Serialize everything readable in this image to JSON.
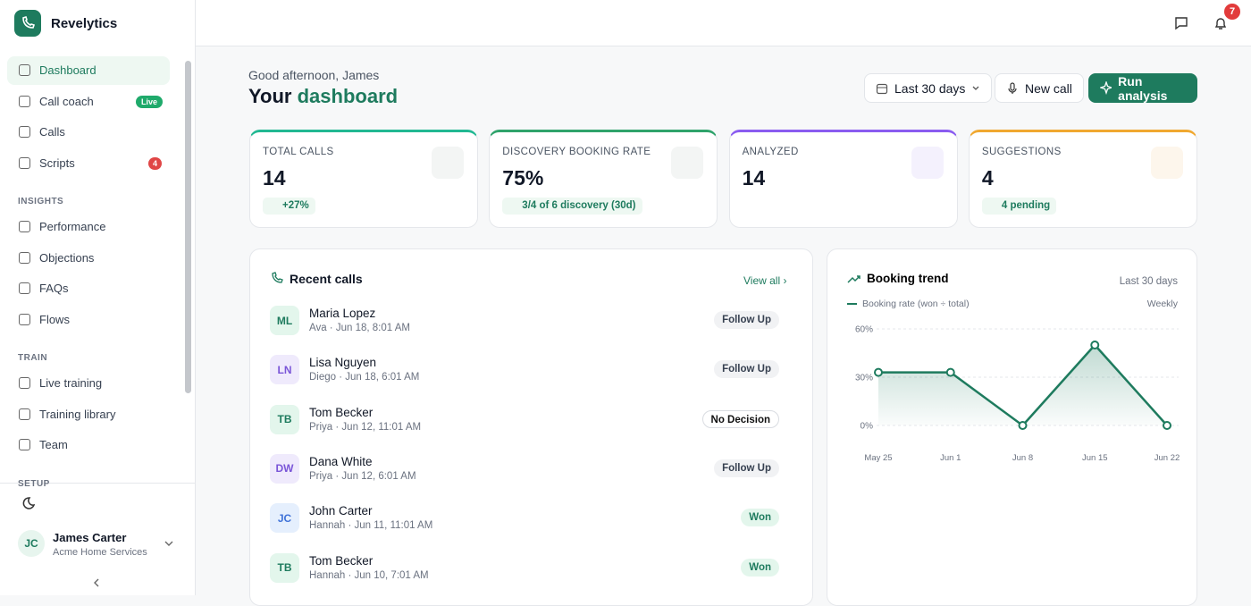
{
  "sidebar": {
    "brand": "Revelytics",
    "nav": [
      {
        "label": "Dashboard"
      },
      {
        "label": "Call coach",
        "badge": "Live"
      },
      {
        "label": "Calls"
      },
      {
        "label": "Scripts",
        "badge": "4"
      }
    ],
    "sections": [
      {
        "title": "INSIGHTS",
        "items": [
          "Performance",
          "Objections",
          "FAQs",
          "Flows"
        ]
      },
      {
        "title": "TRAIN",
        "items": [
          "Live training",
          "Training library",
          "Team"
        ]
      },
      {
        "title": "SETUP"
      }
    ],
    "user": {
      "initials": "JC",
      "name": "James Carter",
      "org": "Acme Home Services"
    }
  },
  "topbar": {
    "notifications": "7"
  },
  "header": {
    "greeting": "Good afternoon, James",
    "title_prefix": "Your",
    "title_highlight": "dashboard",
    "buttons": [
      "Last 30 days",
      "New call",
      "Run analysis"
    ]
  },
  "stats": [
    {
      "label": "TOTAL CALLS",
      "value": "14",
      "note": "+27%"
    },
    {
      "label": "DISCOVERY BOOKING RATE",
      "value": "75%",
      "note": "3/4 of 6 discovery (30d)"
    },
    {
      "label": "ANALYZED",
      "value": "14"
    },
    {
      "label": "SUGGESTIONS",
      "value": "4",
      "note": "4 pending"
    }
  ],
  "recent_calls": {
    "title": "Recent calls",
    "link": "View all",
    "rows": [
      {
        "initials": "ML",
        "name": "Maria Lopez",
        "meta": "Ava · Jun 18, 8:01 AM",
        "status": "Follow Up"
      },
      {
        "initials": "LN",
        "name": "Lisa Nguyen",
        "meta": "Diego · Jun 18, 6:01 AM",
        "status": "Follow Up"
      },
      {
        "initials": "TB",
        "name": "Tom Becker",
        "meta": "Priya · Jun 12, 11:01 AM",
        "status": "No Decision"
      },
      {
        "initials": "DW",
        "name": "Dana White",
        "meta": "Priya · Jun 12, 6:01 AM",
        "status": "Follow Up"
      },
      {
        "initials": "JC",
        "name": "John Carter",
        "meta": "Hannah · Jun 11, 11:01 AM",
        "status": "Won"
      },
      {
        "initials": "TB",
        "name": "Tom Becker",
        "meta": "Hannah · Jun 10, 7:01 AM",
        "status": "Won"
      }
    ]
  },
  "chart_data": {
    "type": "line",
    "title": "Booking trend",
    "subtitle": "Last 30 days",
    "period": "Weekly",
    "categories": [
      "May 25",
      "Jun 1",
      "Jun 8",
      "Jun 15",
      "Jun 22"
    ],
    "series": [
      {
        "name": "Booking rate (won ÷ total)",
        "color": "#1e7b5e",
        "values": [
          33,
          33,
          0,
          50,
          0
        ]
      }
    ],
    "ylim": [
      0,
      60
    ],
    "yticks": [
      {
        "value": 0,
        "label": "0%"
      },
      {
        "value": 30,
        "label": "30%"
      },
      {
        "value": 60,
        "label": "60%"
      }
    ],
    "grid": true
  }
}
